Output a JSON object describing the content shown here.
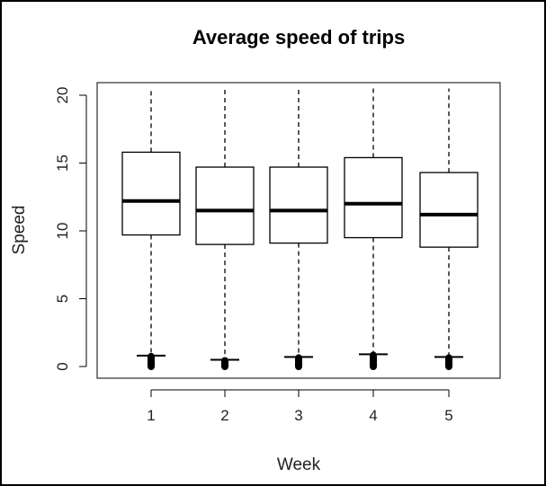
{
  "chart_data": {
    "type": "boxplot",
    "title": "Average speed of trips",
    "xlabel": "Week",
    "ylabel": "Speed",
    "categories": [
      "1",
      "2",
      "3",
      "4",
      "5"
    ],
    "ylim": [
      0,
      20
    ],
    "yticks": [
      0,
      5,
      10,
      15,
      20
    ],
    "grid": false,
    "legend": "none",
    "boxes": [
      {
        "week": "1",
        "whisker_low": 0.8,
        "q1": 9.7,
        "median": 12.2,
        "q3": 15.8,
        "whisker_high": 20.5,
        "outliers_low": [
          0.0,
          0.8
        ]
      },
      {
        "week": "2",
        "whisker_low": 0.5,
        "q1": 9.0,
        "median": 11.5,
        "q3": 14.7,
        "whisker_high": 20.5,
        "outliers_low": [
          0.0,
          0.5
        ]
      },
      {
        "week": "3",
        "whisker_low": 0.7,
        "q1": 9.1,
        "median": 11.5,
        "q3": 14.7,
        "whisker_high": 20.5,
        "outliers_low": [
          0.0,
          0.7
        ]
      },
      {
        "week": "4",
        "whisker_low": 0.9,
        "q1": 9.5,
        "median": 12.0,
        "q3": 15.4,
        "whisker_high": 20.5,
        "outliers_low": [
          0.0,
          0.9
        ]
      },
      {
        "week": "5",
        "whisker_low": 0.7,
        "q1": 8.8,
        "median": 11.2,
        "q3": 14.3,
        "whisker_high": 20.5,
        "outliers_low": [
          0.0,
          0.7
        ]
      }
    ],
    "colors": {
      "box_fill": "#ffffff",
      "stroke": "#000000"
    }
  }
}
